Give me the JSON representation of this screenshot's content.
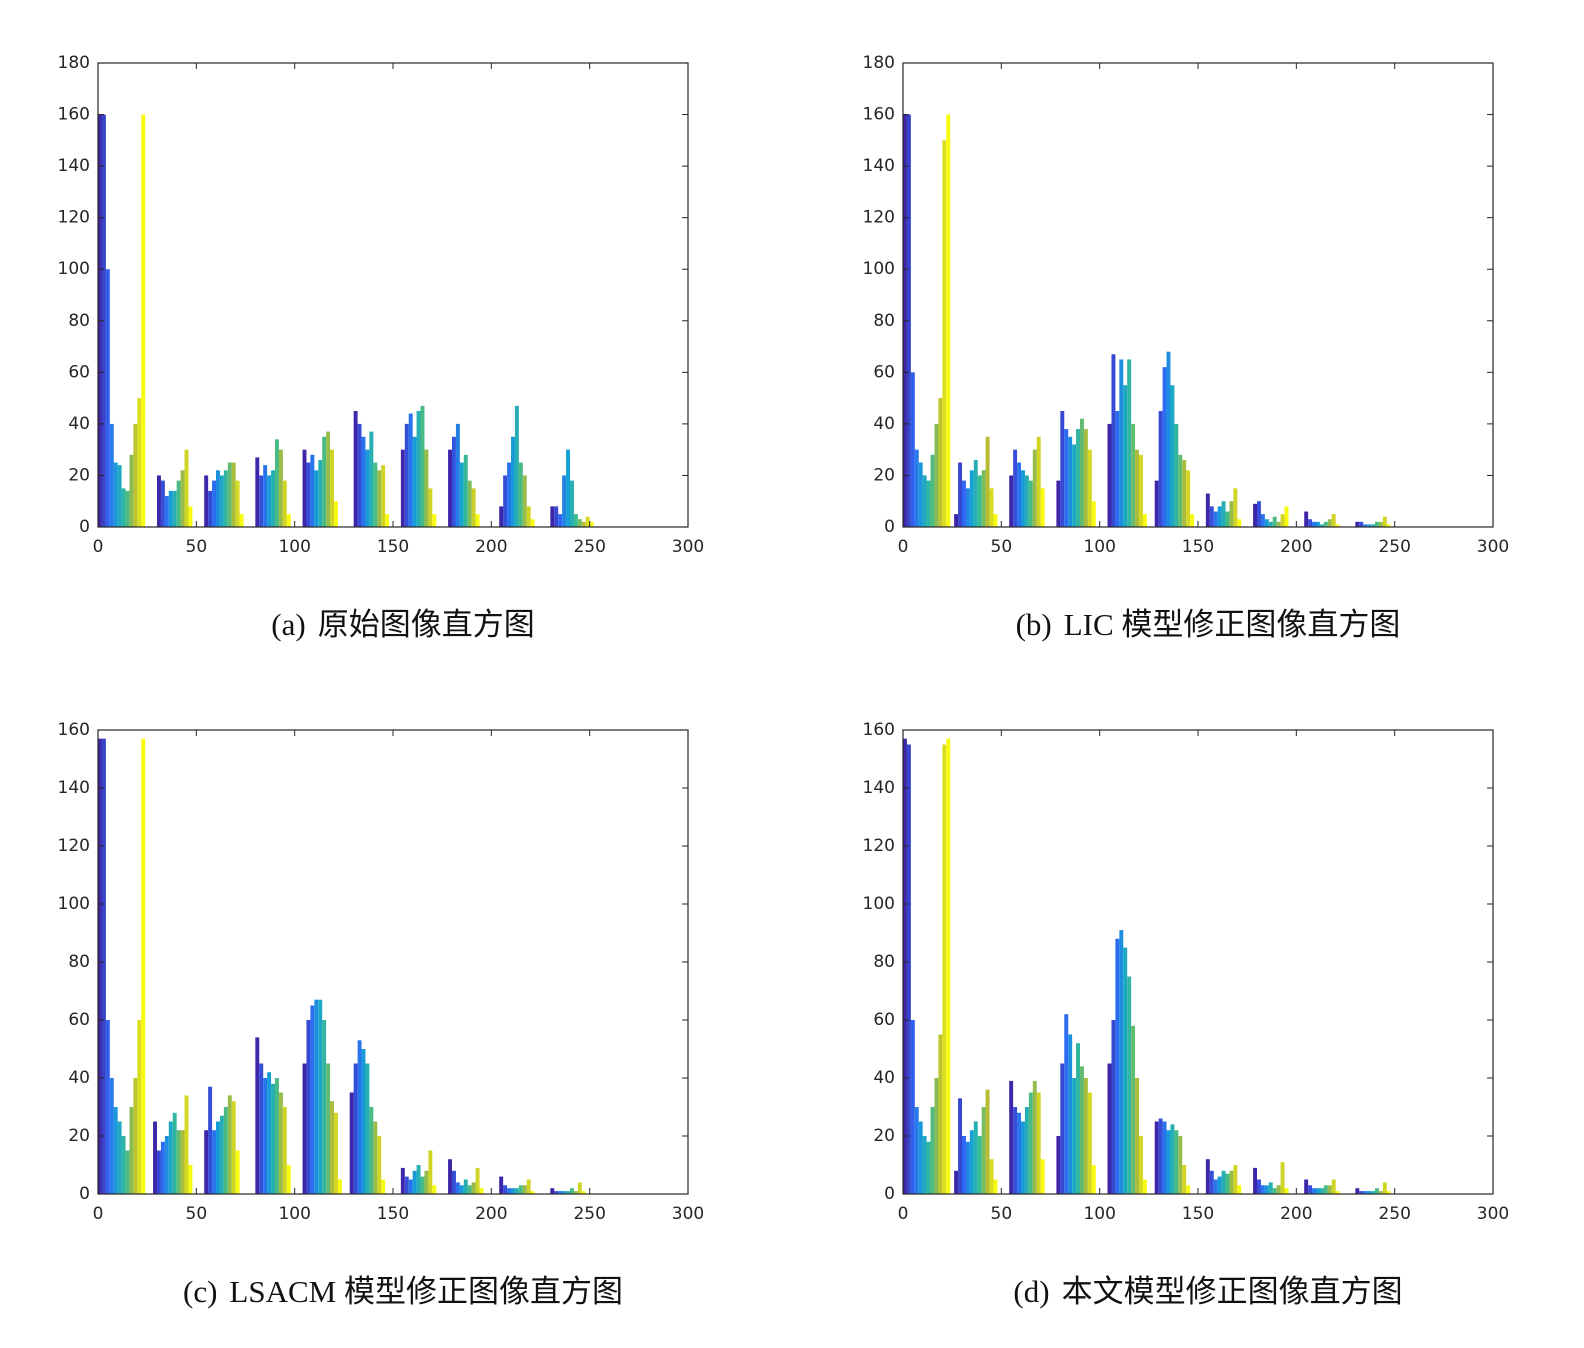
{
  "chart_data": [
    {
      "type": "histogram",
      "label": "(a)",
      "caption": "原始图像直方图",
      "bins": [
        0,
        2,
        4,
        6,
        8,
        10,
        12,
        14,
        16,
        18,
        20,
        22,
        24,
        26,
        28,
        30,
        32,
        34,
        36,
        38,
        40,
        42,
        44,
        46,
        48,
        50,
        52,
        54,
        56,
        58,
        60,
        62,
        64,
        66,
        68,
        70,
        72,
        74,
        76,
        78,
        80,
        82,
        84,
        86,
        88,
        90,
        92,
        94,
        96,
        98,
        100,
        102,
        104,
        106,
        108,
        110,
        112,
        114,
        116,
        118,
        120,
        122,
        124,
        126,
        128,
        130,
        132,
        134,
        136,
        138,
        140,
        142,
        144,
        146,
        148,
        150,
        152,
        154,
        156,
        158,
        160,
        162,
        164,
        166,
        168,
        170,
        172,
        174,
        176,
        178,
        180,
        182,
        184,
        186,
        188,
        190,
        192,
        194,
        196,
        198,
        200,
        202,
        204,
        206,
        208,
        210,
        212,
        214,
        216,
        218,
        220,
        222,
        224,
        226,
        228,
        230,
        232,
        234,
        236,
        238,
        240,
        242,
        244,
        246,
        248,
        250,
        252,
        254,
        256,
        258,
        260
      ],
      "values": [
        160,
        160,
        100,
        40,
        25,
        24,
        15,
        14,
        28,
        40,
        50,
        160,
        0,
        0,
        0,
        20,
        18,
        12,
        14,
        14,
        18,
        22,
        30,
        8,
        0,
        0,
        0,
        20,
        14,
        18,
        22,
        20,
        22,
        25,
        25,
        18,
        5,
        0,
        0,
        0,
        27,
        20,
        24,
        20,
        22,
        34,
        30,
        18,
        5,
        0,
        0,
        0,
        30,
        25,
        28,
        22,
        26,
        35,
        37,
        30,
        10,
        0,
        0,
        0,
        0,
        45,
        40,
        35,
        30,
        37,
        25,
        22,
        24,
        5,
        0,
        0,
        0,
        30,
        40,
        44,
        35,
        45,
        47,
        30,
        15,
        5,
        0,
        0,
        0,
        30,
        35,
        40,
        25,
        28,
        18,
        15,
        5,
        0,
        0,
        0,
        0,
        0,
        8,
        20,
        25,
        35,
        47,
        25,
        20,
        8,
        3,
        0,
        0,
        0,
        0,
        8,
        8,
        5,
        20,
        30,
        18,
        5,
        3,
        2,
        4,
        2,
        0,
        0,
        0,
        0
      ],
      "xlim": [
        0,
        300
      ],
      "xticks": [
        0,
        50,
        100,
        150,
        200,
        250,
        300
      ],
      "ylim": [
        0,
        180
      ],
      "yticks": [
        0,
        20,
        40,
        60,
        80,
        100,
        120,
        140,
        160,
        180
      ],
      "colormap": [
        "#3e26a8",
        "#2f65f5",
        "#14a2d4",
        "#38bb90",
        "#b7bc32",
        "#f9fb0e"
      ]
    },
    {
      "type": "histogram",
      "label": "(b)",
      "caption": "LIC 模型修正图像直方图",
      "bins": [
        0,
        2,
        4,
        6,
        8,
        10,
        12,
        14,
        16,
        18,
        20,
        22,
        24,
        26,
        28,
        30,
        32,
        34,
        36,
        38,
        40,
        42,
        44,
        46,
        48,
        50,
        52,
        54,
        56,
        58,
        60,
        62,
        64,
        66,
        68,
        70,
        72,
        74,
        76,
        78,
        80,
        82,
        84,
        86,
        88,
        90,
        92,
        94,
        96,
        98,
        100,
        102,
        104,
        106,
        108,
        110,
        112,
        114,
        116,
        118,
        120,
        122,
        124,
        126,
        128,
        130,
        132,
        134,
        136,
        138,
        140,
        142,
        144,
        146,
        148,
        150,
        152,
        154,
        156,
        158,
        160,
        162,
        164,
        166,
        168,
        170,
        172,
        174,
        176,
        178,
        180,
        182,
        184,
        186,
        188,
        190,
        192,
        194,
        196,
        198,
        200,
        202,
        204,
        206,
        208,
        210,
        212,
        214,
        216,
        218,
        220,
        222,
        224,
        226,
        228,
        230,
        232,
        234,
        236,
        238,
        240,
        242,
        244,
        246,
        248,
        250,
        252,
        254,
        256,
        258,
        260
      ],
      "values": [
        160,
        160,
        60,
        30,
        25,
        20,
        18,
        28,
        40,
        50,
        150,
        160,
        0,
        5,
        25,
        18,
        15,
        22,
        26,
        20,
        22,
        35,
        15,
        5,
        0,
        0,
        0,
        20,
        30,
        25,
        22,
        20,
        18,
        30,
        35,
        15,
        0,
        0,
        0,
        18,
        45,
        38,
        35,
        32,
        38,
        42,
        38,
        30,
        10,
        0,
        0,
        0,
        40,
        67,
        45,
        65,
        55,
        65,
        40,
        30,
        28,
        5,
        0,
        0,
        18,
        45,
        62,
        68,
        55,
        40,
        28,
        26,
        22,
        5,
        0,
        0,
        0,
        13,
        8,
        6,
        8,
        10,
        6,
        10,
        15,
        3,
        0,
        0,
        0,
        9,
        10,
        5,
        3,
        2,
        4,
        2,
        5,
        8,
        0,
        0,
        0,
        0,
        6,
        3,
        2,
        2,
        1,
        2,
        3,
        5,
        1,
        0,
        0,
        0,
        0,
        2,
        2,
        1,
        1,
        1,
        2,
        2,
        4,
        1,
        0,
        0,
        0,
        0,
        0,
        0
      ],
      "xlim": [
        0,
        300
      ],
      "xticks": [
        0,
        50,
        100,
        150,
        200,
        250,
        300
      ],
      "ylim": [
        0,
        180
      ],
      "yticks": [
        0,
        20,
        40,
        60,
        80,
        100,
        120,
        140,
        160,
        180
      ],
      "colormap": [
        "#3e26a8",
        "#2f65f5",
        "#14a2d4",
        "#38bb90",
        "#b7bc32",
        "#f9fb0e"
      ]
    },
    {
      "type": "histogram",
      "label": "(c)",
      "caption": "LSACM 模型修正图像直方图",
      "bins": [
        0,
        2,
        4,
        6,
        8,
        10,
        12,
        14,
        16,
        18,
        20,
        22,
        24,
        26,
        28,
        30,
        32,
        34,
        36,
        38,
        40,
        42,
        44,
        46,
        48,
        50,
        52,
        54,
        56,
        58,
        60,
        62,
        64,
        66,
        68,
        70,
        72,
        74,
        76,
        78,
        80,
        82,
        84,
        86,
        88,
        90,
        92,
        94,
        96,
        98,
        100,
        102,
        104,
        106,
        108,
        110,
        112,
        114,
        116,
        118,
        120,
        122,
        124,
        126,
        128,
        130,
        132,
        134,
        136,
        138,
        140,
        142,
        144,
        146,
        148,
        150,
        152,
        154,
        156,
        158,
        160,
        162,
        164,
        166,
        168,
        170,
        172,
        174,
        176,
        178,
        180,
        182,
        184,
        186,
        188,
        190,
        192,
        194,
        196,
        198,
        200,
        202,
        204,
        206,
        208,
        210,
        212,
        214,
        216,
        218,
        220,
        222,
        224,
        226,
        228,
        230,
        232,
        234,
        236,
        238,
        240,
        242,
        244,
        246,
        248,
        250,
        252,
        254,
        256,
        258,
        260
      ],
      "values": [
        157,
        157,
        60,
        40,
        30,
        25,
        20,
        15,
        30,
        40,
        60,
        157,
        0,
        0,
        25,
        15,
        18,
        20,
        25,
        28,
        22,
        22,
        34,
        10,
        0,
        0,
        0,
        22,
        37,
        22,
        25,
        27,
        30,
        34,
        32,
        15,
        0,
        0,
        0,
        0,
        54,
        45,
        40,
        42,
        38,
        40,
        35,
        30,
        10,
        0,
        0,
        0,
        45,
        60,
        65,
        67,
        67,
        60,
        45,
        32,
        28,
        5,
        0,
        0,
        35,
        45,
        53,
        50,
        45,
        30,
        25,
        20,
        5,
        0,
        0,
        0,
        0,
        9,
        6,
        5,
        8,
        10,
        6,
        8,
        15,
        3,
        0,
        0,
        0,
        12,
        8,
        4,
        3,
        5,
        3,
        4,
        9,
        2,
        0,
        0,
        0,
        0,
        6,
        3,
        2,
        2,
        2,
        3,
        3,
        5,
        1,
        0,
        0,
        0,
        0,
        2,
        1,
        1,
        1,
        1,
        2,
        1,
        4,
        1,
        0,
        0,
        0,
        0,
        0,
        0
      ],
      "xlim": [
        0,
        300
      ],
      "xticks": [
        0,
        50,
        100,
        150,
        200,
        250,
        300
      ],
      "ylim": [
        0,
        160
      ],
      "yticks": [
        0,
        20,
        40,
        60,
        80,
        100,
        120,
        140,
        160
      ],
      "colormap": [
        "#3e26a8",
        "#2f65f5",
        "#14a2d4",
        "#38bb90",
        "#b7bc32",
        "#f9fb0e"
      ]
    },
    {
      "type": "histogram",
      "label": "(d)",
      "caption": "本文模型修正图像直方图",
      "bins": [
        0,
        2,
        4,
        6,
        8,
        10,
        12,
        14,
        16,
        18,
        20,
        22,
        24,
        26,
        28,
        30,
        32,
        34,
        36,
        38,
        40,
        42,
        44,
        46,
        48,
        50,
        52,
        54,
        56,
        58,
        60,
        62,
        64,
        66,
        68,
        70,
        72,
        74,
        76,
        78,
        80,
        82,
        84,
        86,
        88,
        90,
        92,
        94,
        96,
        98,
        100,
        102,
        104,
        106,
        108,
        110,
        112,
        114,
        116,
        118,
        120,
        122,
        124,
        126,
        128,
        130,
        132,
        134,
        136,
        138,
        140,
        142,
        144,
        146,
        148,
        150,
        152,
        154,
        156,
        158,
        160,
        162,
        164,
        166,
        168,
        170,
        172,
        174,
        176,
        178,
        180,
        182,
        184,
        186,
        188,
        190,
        192,
        194,
        196,
        198,
        200,
        202,
        204,
        206,
        208,
        210,
        212,
        214,
        216,
        218,
        220,
        222,
        224,
        226,
        228,
        230,
        232,
        234,
        236,
        238,
        240,
        242,
        244,
        246,
        248,
        250,
        252,
        254,
        256,
        258,
        260
      ],
      "values": [
        157,
        155,
        60,
        30,
        25,
        20,
        18,
        30,
        40,
        55,
        155,
        157,
        0,
        8,
        33,
        20,
        18,
        22,
        25,
        20,
        30,
        36,
        12,
        5,
        0,
        0,
        0,
        39,
        30,
        28,
        25,
        30,
        35,
        39,
        35,
        12,
        0,
        0,
        0,
        20,
        45,
        62,
        55,
        40,
        52,
        44,
        40,
        35,
        10,
        0,
        0,
        0,
        45,
        60,
        88,
        91,
        85,
        75,
        58,
        40,
        20,
        5,
        0,
        0,
        25,
        26,
        25,
        22,
        24,
        22,
        20,
        10,
        3,
        0,
        0,
        0,
        0,
        12,
        8,
        5,
        6,
        8,
        7,
        8,
        10,
        3,
        0,
        0,
        0,
        9,
        5,
        3,
        3,
        4,
        2,
        3,
        11,
        2,
        0,
        0,
        0,
        0,
        5,
        3,
        2,
        2,
        2,
        3,
        3,
        5,
        1,
        0,
        0,
        0,
        0,
        2,
        1,
        1,
        1,
        1,
        2,
        1,
        4,
        1,
        0,
        0,
        0,
        0,
        0,
        0
      ],
      "xlim": [
        0,
        300
      ],
      "xticks": [
        0,
        50,
        100,
        150,
        200,
        250,
        300
      ],
      "ylim": [
        0,
        160
      ],
      "yticks": [
        0,
        20,
        40,
        60,
        80,
        100,
        120,
        140,
        160
      ],
      "colormap": [
        "#3e26a8",
        "#2f65f5",
        "#14a2d4",
        "#38bb90",
        "#b7bc32",
        "#f9fb0e"
      ]
    }
  ]
}
